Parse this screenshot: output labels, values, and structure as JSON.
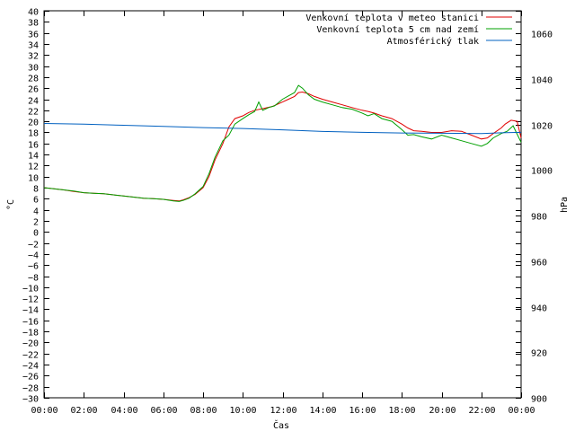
{
  "chart_data": {
    "type": "line",
    "xlabel": "Čas",
    "ylabel_left": "°C",
    "ylabel_right": "hPa",
    "x_ticks": [
      "00:00",
      "02:00",
      "04:00",
      "06:00",
      "08:00",
      "10:00",
      "12:00",
      "14:00",
      "16:00",
      "18:00",
      "20:00",
      "22:00",
      "00:00"
    ],
    "xlim_hours": [
      0,
      24
    ],
    "ylim_left": [
      -30,
      40
    ],
    "y_left_step": 2,
    "ylim_right": [
      900,
      1070
    ],
    "y_right_ticks": [
      900,
      920,
      940,
      960,
      980,
      1000,
      1020,
      1040,
      1060
    ],
    "grid": false,
    "legend_position": "top-right",
    "series": [
      {
        "name": "Venkovní teplota v meteo stanici",
        "axis": "left",
        "color": "#e00000",
        "x": [
          0,
          0.5,
          1,
          1.5,
          2,
          2.5,
          3,
          3.5,
          4,
          4.5,
          5,
          5.5,
          6,
          6.5,
          6.8,
          7,
          7.3,
          7.6,
          8,
          8.3,
          8.6,
          9,
          9.3,
          9.6,
          10,
          10.3,
          10.6,
          11,
          11.5,
          12,
          12.3,
          12.6,
          12.8,
          13,
          13.3,
          13.6,
          14,
          14.5,
          15,
          15.5,
          16,
          16.3,
          16.6,
          17,
          17.5,
          18,
          18.3,
          18.6,
          19,
          19.5,
          20,
          20.5,
          21,
          21.5,
          22,
          22.3,
          22.6,
          23,
          23.2,
          23.5,
          23.8,
          24
        ],
        "y": [
          8,
          7.8,
          7.6,
          7.3,
          7.1,
          7,
          6.9,
          6.7,
          6.5,
          6.3,
          6.1,
          6,
          5.9,
          5.7,
          5.6,
          5.8,
          6.2,
          6.8,
          8,
          10,
          13,
          16,
          19,
          20.5,
          21,
          21.6,
          22,
          22.3,
          22.7,
          23.5,
          24,
          24.5,
          25.2,
          25.3,
          25,
          24.5,
          24,
          23.5,
          23,
          22.5,
          22,
          21.8,
          21.5,
          21,
          20.5,
          19.5,
          18.8,
          18.3,
          18.2,
          18,
          18,
          18.3,
          18.2,
          17.5,
          16.8,
          17,
          17.8,
          18.8,
          19.5,
          20.2,
          20,
          17
        ]
      },
      {
        "name": "Venkovní teplota 5 cm nad zemí",
        "axis": "left",
        "color": "#00a000",
        "x": [
          0,
          0.5,
          1,
          1.5,
          2,
          2.5,
          3,
          3.5,
          4,
          4.5,
          5,
          5.5,
          6,
          6.5,
          6.8,
          7,
          7.3,
          7.6,
          8,
          8.3,
          8.6,
          9,
          9.3,
          9.6,
          10,
          10.3,
          10.6,
          10.8,
          11,
          11.3,
          11.6,
          12,
          12.3,
          12.6,
          12.8,
          13,
          13.3,
          13.6,
          14,
          14.5,
          15,
          15.5,
          16,
          16.3,
          16.6,
          17,
          17.5,
          18,
          18.3,
          18.6,
          19,
          19.5,
          20,
          20.5,
          21,
          21.5,
          22,
          22.3,
          22.6,
          23,
          23.3,
          23.6,
          24
        ],
        "y": [
          8,
          7.8,
          7.6,
          7.4,
          7.1,
          7,
          6.9,
          6.7,
          6.5,
          6.3,
          6.1,
          6,
          5.9,
          5.6,
          5.5,
          5.7,
          6.1,
          6.9,
          8.2,
          10.5,
          13.5,
          16.5,
          17.5,
          19.5,
          20.5,
          21.2,
          21.8,
          23.5,
          22,
          22.5,
          22.8,
          24,
          24.6,
          25.2,
          26.5,
          26,
          24.8,
          24,
          23.5,
          23,
          22.5,
          22.2,
          21.5,
          21,
          21.4,
          20.5,
          20,
          18.5,
          17.5,
          17.6,
          17.2,
          16.8,
          17.5,
          17,
          16.5,
          16,
          15.5,
          16,
          17,
          17.8,
          18.2,
          19.2,
          16.2
        ]
      },
      {
        "name": "Atmosférický tlak",
        "axis": "right",
        "color": "#0060c0",
        "x": [
          0,
          2,
          4,
          6,
          8,
          10,
          12,
          14,
          16,
          18,
          20,
          22,
          23,
          24
        ],
        "y": [
          1020.5,
          1020.2,
          1019.7,
          1019.2,
          1018.7,
          1018.3,
          1017.7,
          1017.0,
          1016.6,
          1016.3,
          1016.2,
          1016.1,
          1016.4,
          1016.6
        ]
      }
    ]
  }
}
